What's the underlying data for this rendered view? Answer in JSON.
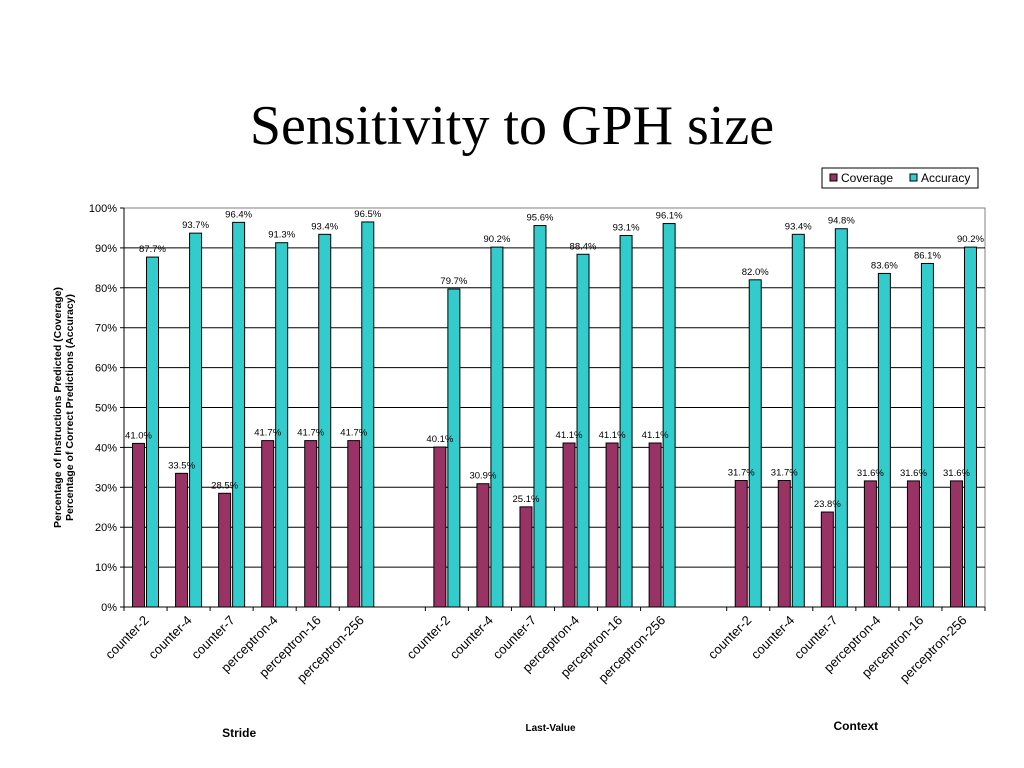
{
  "slide": {
    "title": "Sensitivity to GPH size"
  },
  "chart_data": {
    "type": "bar",
    "ylabel_lines": [
      "Percentage of Instructions Predicted (Coverage)",
      "Percentage of Correct Predictions (Accuracy)"
    ],
    "ylim": [
      0,
      100
    ],
    "y_ticks": [
      "0%",
      "10%",
      "20%",
      "30%",
      "40%",
      "50%",
      "60%",
      "70%",
      "80%",
      "90%",
      "100%"
    ],
    "grid": true,
    "legend_position": "top-right",
    "groups": [
      {
        "name": "Stride",
        "categories": [
          "counter-2",
          "counter-4",
          "counter-7",
          "perceptron-4",
          "perceptron-16",
          "perceptron-256"
        ],
        "series": [
          {
            "name": "Coverage",
            "values": [
              41.0,
              33.5,
              28.5,
              41.7,
              41.7,
              41.7
            ],
            "labels": [
              "41.0%",
              "33.5%",
              "28.5%",
              "41.7%",
              "41.7%",
              "41.7%"
            ]
          },
          {
            "name": "Accuracy",
            "values": [
              87.7,
              93.7,
              96.4,
              91.3,
              93.4,
              96.5
            ],
            "labels": [
              "87.7%",
              "93.7%",
              "96.4%",
              "91.3%",
              "93.4%",
              "96.5%"
            ]
          }
        ]
      },
      {
        "name": "Last-Value",
        "categories": [
          "counter-2",
          "counter-4",
          "counter-7",
          "perceptron-4",
          "perceptron-16",
          "perceptron-256"
        ],
        "series": [
          {
            "name": "Coverage",
            "values": [
              40.1,
              30.9,
              25.1,
              41.1,
              41.1,
              41.1
            ],
            "labels": [
              "40.1%",
              "30.9%",
              "25.1%",
              "41.1%",
              "41.1%",
              "41.1%"
            ]
          },
          {
            "name": "Accuracy",
            "values": [
              79.7,
              90.2,
              95.6,
              88.4,
              93.1,
              96.1
            ],
            "labels": [
              "79.7%",
              "90.2%",
              "95.6%",
              "88.4%",
              "93.1%",
              "96.1%"
            ]
          }
        ]
      },
      {
        "name": "Context",
        "categories": [
          "counter-2",
          "counter-4",
          "counter-7",
          "perceptron-4",
          "perceptron-16",
          "perceptron-256"
        ],
        "series": [
          {
            "name": "Coverage",
            "values": [
              31.7,
              31.7,
              23.8,
              31.6,
              31.6,
              31.6
            ],
            "labels": [
              "31.7%",
              "31.7%",
              "23.8%",
              "31.6%",
              "31.6%",
              "31.6%"
            ]
          },
          {
            "name": "Accuracy",
            "values": [
              82.0,
              93.4,
              94.8,
              83.6,
              86.1,
              90.2
            ],
            "labels": [
              "82.0%",
              "93.4%",
              "94.8%",
              "83.6%",
              "86.1%",
              "90.2%"
            ]
          }
        ]
      }
    ],
    "colors": {
      "Coverage": "#993366",
      "Accuracy": "#33CCCC"
    }
  }
}
